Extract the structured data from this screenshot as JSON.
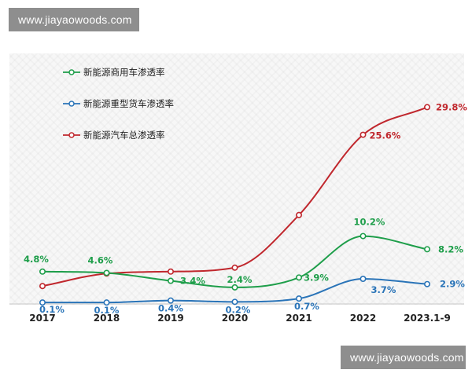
{
  "watermark": {
    "top": "www.jiayaowoods.com",
    "bottom": "www.jiayaowoods.com"
  },
  "chart_data": {
    "type": "line",
    "categories": [
      "2017",
      "2018",
      "2019",
      "2020",
      "2021",
      "2022",
      "2023.1-9"
    ],
    "ylim": [
      0,
      32
    ],
    "grid": false,
    "legend": "top-left",
    "series": [
      {
        "name": "新能源商用车渗透率",
        "color": "#1e9e4a",
        "values": [
          4.8,
          4.6,
          3.4,
          2.4,
          3.9,
          10.2,
          8.2
        ],
        "labels": [
          "4.8%",
          "4.6%",
          "3.4%",
          "2.4%",
          "3.9%",
          "10.2%",
          "8.2%"
        ]
      },
      {
        "name": "新能源重型货车渗透率",
        "color": "#2a74b8",
        "values": [
          0.1,
          0.1,
          0.4,
          0.2,
          0.7,
          3.7,
          2.9
        ],
        "labels": [
          "0.1%",
          "0.1%",
          "0.4%",
          "0.2%",
          "0.7%",
          "3.7%",
          "2.9%"
        ]
      },
      {
        "name": "新能源汽车总渗透率",
        "color": "#c0272d",
        "values": [
          2.6,
          4.5,
          4.8,
          5.4,
          13.4,
          25.6,
          29.8
        ],
        "labels": [
          "",
          "",
          "",
          "",
          "",
          "25.6%",
          "29.8%"
        ]
      }
    ]
  }
}
